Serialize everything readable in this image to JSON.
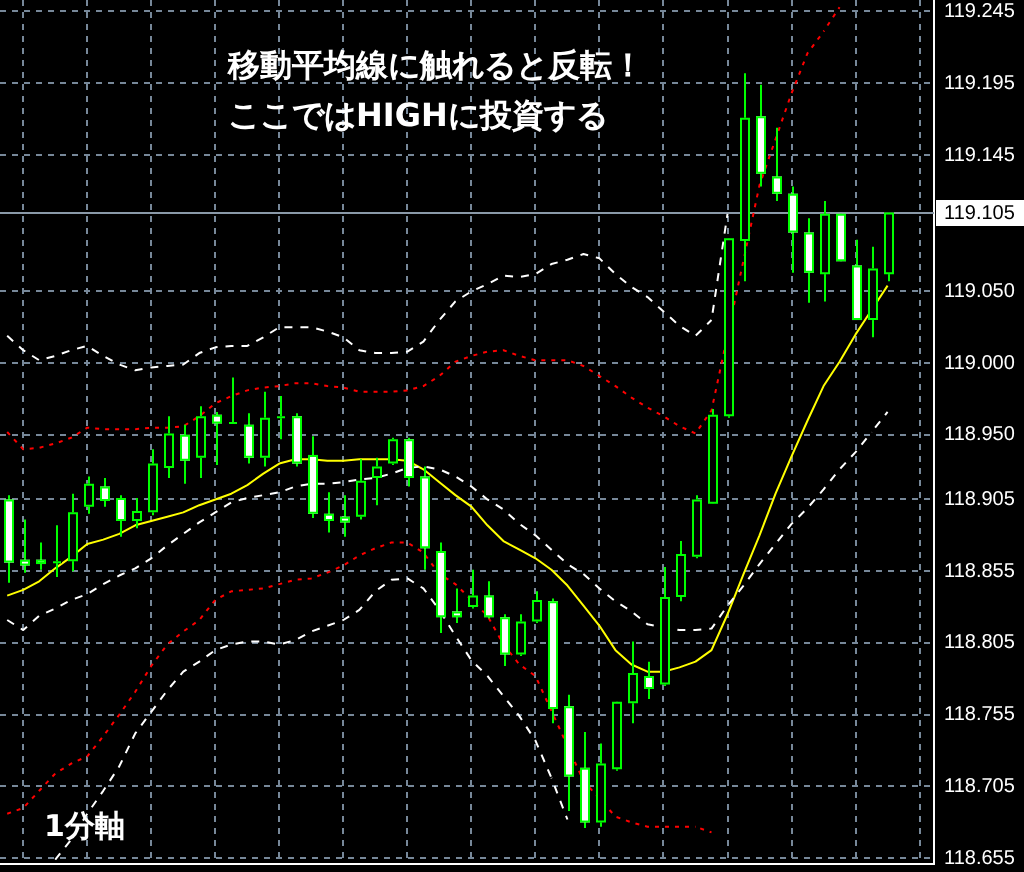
{
  "chart_data": {
    "type": "candlestick",
    "color": "#00ff00",
    "colors": [
      "#ffffff",
      "#ffffff",
      "#ffffff",
      "#000000",
      "#000000",
      "#000000",
      "#ffffff",
      "#ffffff",
      "#000000",
      "#000000",
      "#000000",
      "#ffffff",
      "#000000",
      "#ffffff",
      "#000000",
      "#ffffff",
      "#000000",
      "#000000",
      "#ffffff",
      "#ffffff",
      "#ffffff",
      "#ffffff",
      "#000000",
      "#000000",
      "#000000",
      "#ffffff",
      "#ffffff",
      "#ffffff",
      "#ffffff",
      "#000000",
      "#ffffff",
      "#ffffff",
      "#000000",
      "#000000",
      "#ffffff",
      "#ffffff",
      "#ffffff",
      "#000000",
      "#000000",
      "#000000",
      "#ffffff",
      "#000000",
      "#000000",
      "#000000",
      "#000000",
      "#000000",
      "#000000",
      "#ffffff",
      "#ffffff",
      "#ffffff",
      "#ffffff",
      "#000000",
      "#ffffff",
      "#ffffff",
      "#000000",
      "#000000"
    ],
    "categories": [
      null,
      null,
      null,
      null,
      null,
      null,
      null,
      null,
      null,
      null,
      null,
      null,
      null,
      null,
      null,
      null,
      null,
      null,
      null,
      null,
      null,
      null,
      null,
      null,
      null,
      null,
      null,
      null,
      null,
      null,
      null,
      null,
      null,
      null,
      null,
      null,
      null,
      null,
      null,
      null,
      null,
      null,
      null,
      null,
      null,
      null,
      null,
      null,
      null,
      null,
      null,
      null,
      null,
      null,
      null,
      null
    ],
    "ohlc": [
      [
        118.905,
        118.908,
        118.847,
        118.861
      ],
      [
        118.863,
        118.891,
        118.854,
        118.859
      ],
      [
        118.863,
        118.875,
        118.856,
        118.86
      ],
      [
        118.861,
        118.887,
        118.851,
        118.862
      ],
      [
        118.862,
        118.909,
        118.855,
        118.896
      ],
      [
        118.9,
        118.921,
        118.895,
        118.916
      ],
      [
        118.914,
        118.92,
        118.9,
        118.904
      ],
      [
        118.906,
        118.908,
        118.879,
        118.89
      ],
      [
        118.89,
        118.906,
        118.885,
        118.897
      ],
      [
        118.896,
        118.94,
        118.894,
        118.93
      ],
      [
        118.927,
        118.963,
        118.92,
        118.951
      ],
      [
        118.95,
        118.957,
        118.916,
        118.932
      ],
      [
        118.934,
        118.97,
        118.92,
        118.963
      ],
      [
        118.964,
        118.966,
        118.929,
        118.958
      ],
      [
        118.959,
        118.99,
        118.958,
        118.959
      ],
      [
        118.957,
        118.965,
        118.93,
        118.934
      ],
      [
        118.934,
        118.98,
        118.928,
        118.962
      ],
      [
        118.962,
        118.977,
        118.947,
        118.963
      ],
      [
        118.963,
        118.965,
        118.928,
        118.93
      ],
      [
        118.936,
        118.949,
        118.892,
        118.895
      ],
      [
        118.895,
        118.91,
        118.882,
        118.89
      ],
      [
        118.893,
        118.908,
        118.879,
        118.889
      ],
      [
        118.893,
        118.933,
        118.891,
        118.918
      ],
      [
        118.92,
        118.934,
        118.901,
        118.928
      ],
      [
        118.93,
        118.948,
        118.929,
        118.947
      ],
      [
        118.947,
        118.948,
        118.914,
        118.92
      ],
      [
        118.921,
        118.928,
        118.856,
        118.871
      ],
      [
        118.869,
        118.875,
        118.812,
        118.823
      ],
      [
        118.827,
        118.843,
        118.819,
        118.823
      ],
      [
        118.83,
        118.856,
        118.829,
        118.838
      ],
      [
        118.838,
        118.848,
        118.822,
        118.823
      ],
      [
        118.823,
        118.825,
        118.789,
        118.797
      ],
      [
        118.797,
        118.825,
        118.796,
        118.82
      ],
      [
        118.82,
        118.841,
        118.819,
        118.835
      ],
      [
        118.834,
        118.836,
        118.749,
        118.759
      ],
      [
        118.761,
        118.769,
        118.688,
        118.712
      ],
      [
        118.718,
        118.743,
        118.676,
        118.68
      ],
      [
        118.68,
        118.735,
        118.677,
        118.721
      ],
      [
        118.717,
        118.764,
        118.716,
        118.764
      ],
      [
        118.763,
        118.806,
        118.749,
        118.784
      ],
      [
        118.782,
        118.792,
        118.766,
        118.773
      ],
      [
        118.776,
        118.858,
        118.775,
        118.837
      ],
      [
        118.837,
        118.876,
        118.834,
        118.867
      ],
      [
        118.865,
        118.908,
        118.864,
        118.905
      ],
      [
        118.902,
        118.968,
        118.902,
        118.964
      ],
      [
        118.963,
        119.087,
        118.962,
        119.087
      ],
      [
        119.085,
        119.202,
        119.057,
        119.171
      ],
      [
        119.172,
        119.194,
        119.123,
        119.132
      ],
      [
        119.13,
        119.164,
        119.113,
        119.118
      ],
      [
        119.118,
        119.123,
        119.063,
        119.091
      ],
      [
        119.091,
        119.101,
        119.042,
        119.063
      ],
      [
        119.062,
        119.113,
        119.043,
        119.104
      ],
      [
        119.104,
        119.104,
        119.071,
        119.071
      ],
      [
        119.068,
        119.086,
        119.03,
        119.03
      ],
      [
        119.03,
        119.081,
        119.018,
        119.066
      ],
      [
        119.062,
        119.105,
        119.057,
        119.105
      ]
    ],
    "series": [
      {
        "type": "line",
        "color": "#ffffff",
        "line_style": "dashed",
        "values": [
          119.019,
          119.009,
          119.002,
          119.005,
          119.009,
          119.012,
          119.005,
          118.999,
          118.995,
          118.997,
          118.998,
          118.999,
          119.007,
          119.011,
          119.012,
          119.012,
          119.018,
          119.025,
          119.025,
          119.025,
          119.022,
          119.018,
          119.009,
          119.007,
          119.007,
          119.008,
          119.015,
          119.03,
          119.043,
          119.05,
          119.055,
          119.061,
          119.06,
          119.062,
          119.069,
          119.072,
          119.076,
          119.073,
          119.062,
          119.053,
          119.046,
          119.036,
          119.026,
          119.019,
          119.03,
          119.104,
          null,
          null,
          null,
          null,
          null,
          null,
          null,
          null,
          null,
          null
        ]
      },
      {
        "type": "line",
        "color": "#ffffff",
        "line_style": "dashed",
        "values": [
          118.821,
          118.814,
          118.824,
          118.829,
          118.835,
          118.839,
          118.846,
          118.852,
          118.857,
          118.864,
          118.873,
          118.881,
          118.889,
          118.896,
          118.903,
          118.906,
          118.908,
          118.91,
          118.914,
          118.916,
          118.916,
          118.917,
          118.919,
          118.92,
          118.923,
          118.927,
          118.928,
          118.926,
          118.921,
          118.914,
          118.905,
          118.898,
          118.888,
          118.88,
          118.87,
          118.86,
          118.853,
          118.843,
          118.834,
          118.827,
          118.818,
          null,
          118.814,
          118.814,
          118.815,
          118.831,
          118.845,
          118.86,
          118.874,
          118.888,
          118.899,
          118.912,
          118.926,
          118.938,
          118.952,
          118.966
        ]
      },
      {
        "type": "line",
        "color": "#ffffff",
        "line_style": "dashed",
        "values": [
          null,
          null,
          null,
          118.654,
          118.668,
          118.686,
          118.702,
          118.719,
          118.742,
          118.757,
          118.772,
          118.785,
          118.792,
          118.8,
          118.804,
          118.806,
          118.806,
          118.804,
          118.807,
          118.813,
          118.817,
          118.821,
          118.828,
          118.841,
          118.849,
          118.85,
          118.843,
          118.828,
          118.81,
          118.793,
          118.782,
          118.768,
          118.754,
          118.737,
          118.711,
          118.682,
          null,
          null,
          null,
          null,
          null,
          null,
          null,
          null,
          null,
          null,
          null,
          null,
          null,
          null,
          null,
          null,
          null,
          null,
          null,
          null
        ]
      },
      {
        "type": "line",
        "color": "#ff0000",
        "line_style": "dotted",
        "values": [
          118.952,
          118.94,
          118.941,
          118.944,
          118.948,
          118.955,
          118.954,
          118.954,
          118.954,
          118.955,
          118.955,
          118.956,
          118.963,
          118.972,
          118.977,
          118.981,
          118.983,
          118.984,
          118.986,
          118.986,
          118.984,
          118.983,
          118.98,
          118.98,
          118.98,
          118.981,
          118.984,
          118.991,
          119.001,
          119.005,
          119.008,
          119.009,
          119.005,
          119.002,
          119.002,
          119.002,
          118.998,
          118.991,
          118.984,
          118.976,
          118.969,
          118.963,
          118.956,
          118.951,
          118.967,
          null,
          null,
          119.124,
          119.156,
          119.188,
          119.216,
          119.231,
          119.248,
          null,
          null,
          null
        ]
      },
      {
        "type": "line",
        "color": "#ff0000",
        "line_style": "dotted",
        "values": [
          118.686,
          118.69,
          118.702,
          118.714,
          118.721,
          118.726,
          118.74,
          118.755,
          118.771,
          118.789,
          118.804,
          118.813,
          118.821,
          118.835,
          118.841,
          118.842,
          118.843,
          118.846,
          118.849,
          118.85,
          118.854,
          118.859,
          118.866,
          118.871,
          118.875,
          118.875,
          118.868,
          118.853,
          118.846,
          118.835,
          118.824,
          118.804,
          118.79,
          118.782,
          null,
          null,
          118.709,
          null,
          118.684,
          118.68,
          118.677,
          118.677,
          118.677,
          118.677,
          118.673,
          null,
          null,
          null,
          null,
          null,
          null,
          null,
          null,
          null,
          null,
          null
        ]
      },
      {
        "type": "line",
        "color": "#ffff00",
        "line_style": "solid",
        "values": [
          118.838,
          118.842,
          118.848,
          118.857,
          118.865,
          118.874,
          118.877,
          118.881,
          118.887,
          118.89,
          118.893,
          118.896,
          118.901,
          118.905,
          118.909,
          118.915,
          118.923,
          118.93,
          118.933,
          118.933,
          118.932,
          118.932,
          118.933,
          118.933,
          118.933,
          118.932,
          118.926,
          118.917,
          118.908,
          118.9,
          118.887,
          118.876,
          118.87,
          118.864,
          118.856,
          118.845,
          118.831,
          118.817,
          118.8,
          118.79,
          118.785,
          118.785,
          118.788,
          118.792,
          118.8,
          118.825,
          118.853,
          118.88,
          118.909,
          118.935,
          118.96,
          118.984,
          119.001,
          119.02,
          119.037,
          119.054
        ]
      }
    ],
    "ylim": [
      118.651,
      119.253
    ],
    "yticks": [
      118.655,
      118.705,
      118.755,
      118.805,
      118.855,
      118.905,
      {
        "value": 118.95,
        "label": "118.950"
      },
      {
        "value": 119,
        "label": "119.000"
      },
      {
        "value": 119.05,
        "label": "119.050"
      },
      119.145,
      119.195,
      119.245
    ],
    "grid": true,
    "tick_labels": "y",
    "ref_lines": [
      {
        "axis": "y",
        "value": 119.105,
        "label": "119.105",
        "color": "#8a99a8"
      }
    ],
    "annotations": [
      "移動平均線に触れると反転！",
      "ここではHIGHに投資する",
      "1分軸"
    ]
  }
}
